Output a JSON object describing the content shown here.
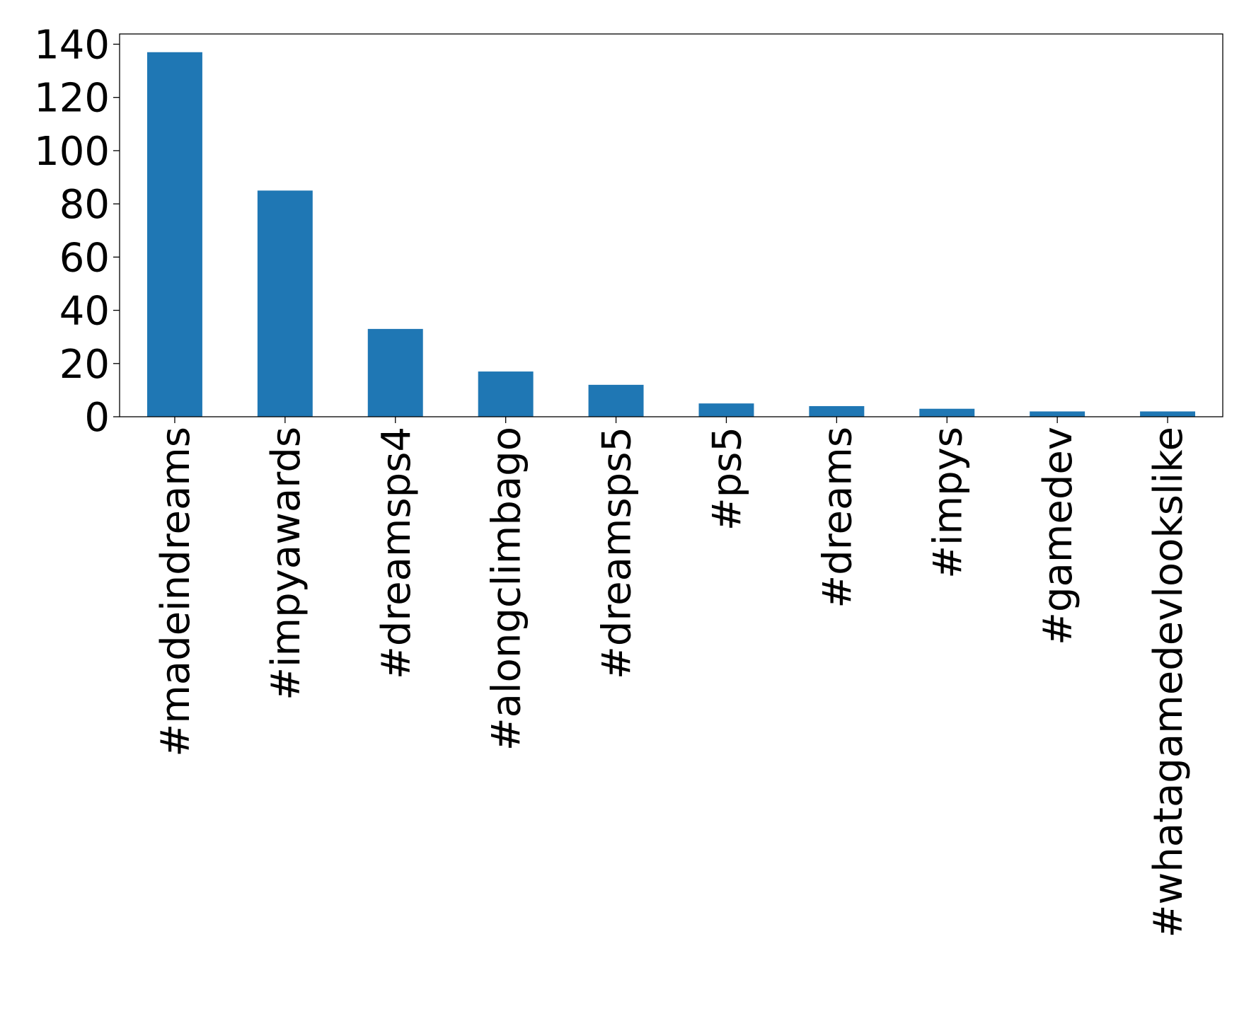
{
  "chart_data": {
    "type": "bar",
    "categories": [
      "#madeindreams",
      "#impyawards",
      "#dreamsps4",
      "#alongclimbago",
      "#dreamsps5",
      "#ps5",
      "#dreams",
      "#impys",
      "#gamedev",
      "#whatagamedevlookslike"
    ],
    "values": [
      137,
      85,
      33,
      17,
      12,
      5,
      4,
      3,
      2,
      2
    ],
    "color": "#1f77b4",
    "ylim": [
      0,
      143.85
    ],
    "yticks": [
      0,
      20,
      40,
      60,
      80,
      100,
      120,
      140
    ],
    "grid": false
  }
}
